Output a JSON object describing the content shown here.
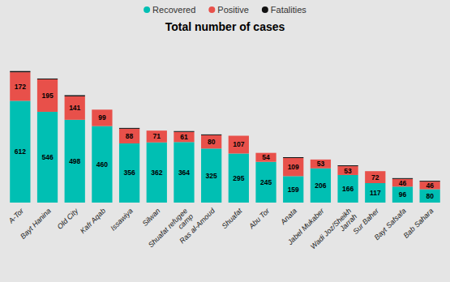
{
  "chart_data": {
    "type": "bar",
    "stacked": true,
    "title": "Total number of cases",
    "categories": [
      "A-Tor",
      "Bayt Hanina",
      "Old City",
      "Kafr Aqab",
      "Issawiya",
      "Silwan",
      "Shuafat refugee\ncamp",
      "Ras al-Amoud",
      "Shuafat",
      "Abu Tor",
      "Anata",
      "Jabel Mukaber",
      "Wadi Joz/Sheikh\nJarrah",
      "Sur Baher",
      "Bayt Safsafa",
      "Bab Sahara"
    ],
    "series": [
      {
        "name": "Recovered",
        "color": "#00BFB3",
        "data_labels": true,
        "values": [
          612,
          546,
          498,
          460,
          356,
          362,
          364,
          325,
          295,
          245,
          159,
          206,
          166,
          117,
          96,
          80
        ]
      },
      {
        "name": "Positive",
        "color": "#E8504A",
        "data_labels": true,
        "values": [
          172,
          195,
          141,
          99,
          88,
          71,
          61,
          80,
          107,
          54,
          109,
          53,
          53,
          72,
          46,
          46
        ]
      },
      {
        "name": "Fatalities",
        "color": "#111111",
        "values": [
          7,
          5,
          7,
          0,
          5,
          0,
          5,
          5,
          0,
          0,
          5,
          0,
          5,
          0,
          5,
          5
        ]
      }
    ],
    "ylim": [
      0,
      965.02
    ],
    "grid": false,
    "legend": "top",
    "tick_labels": "x"
  }
}
